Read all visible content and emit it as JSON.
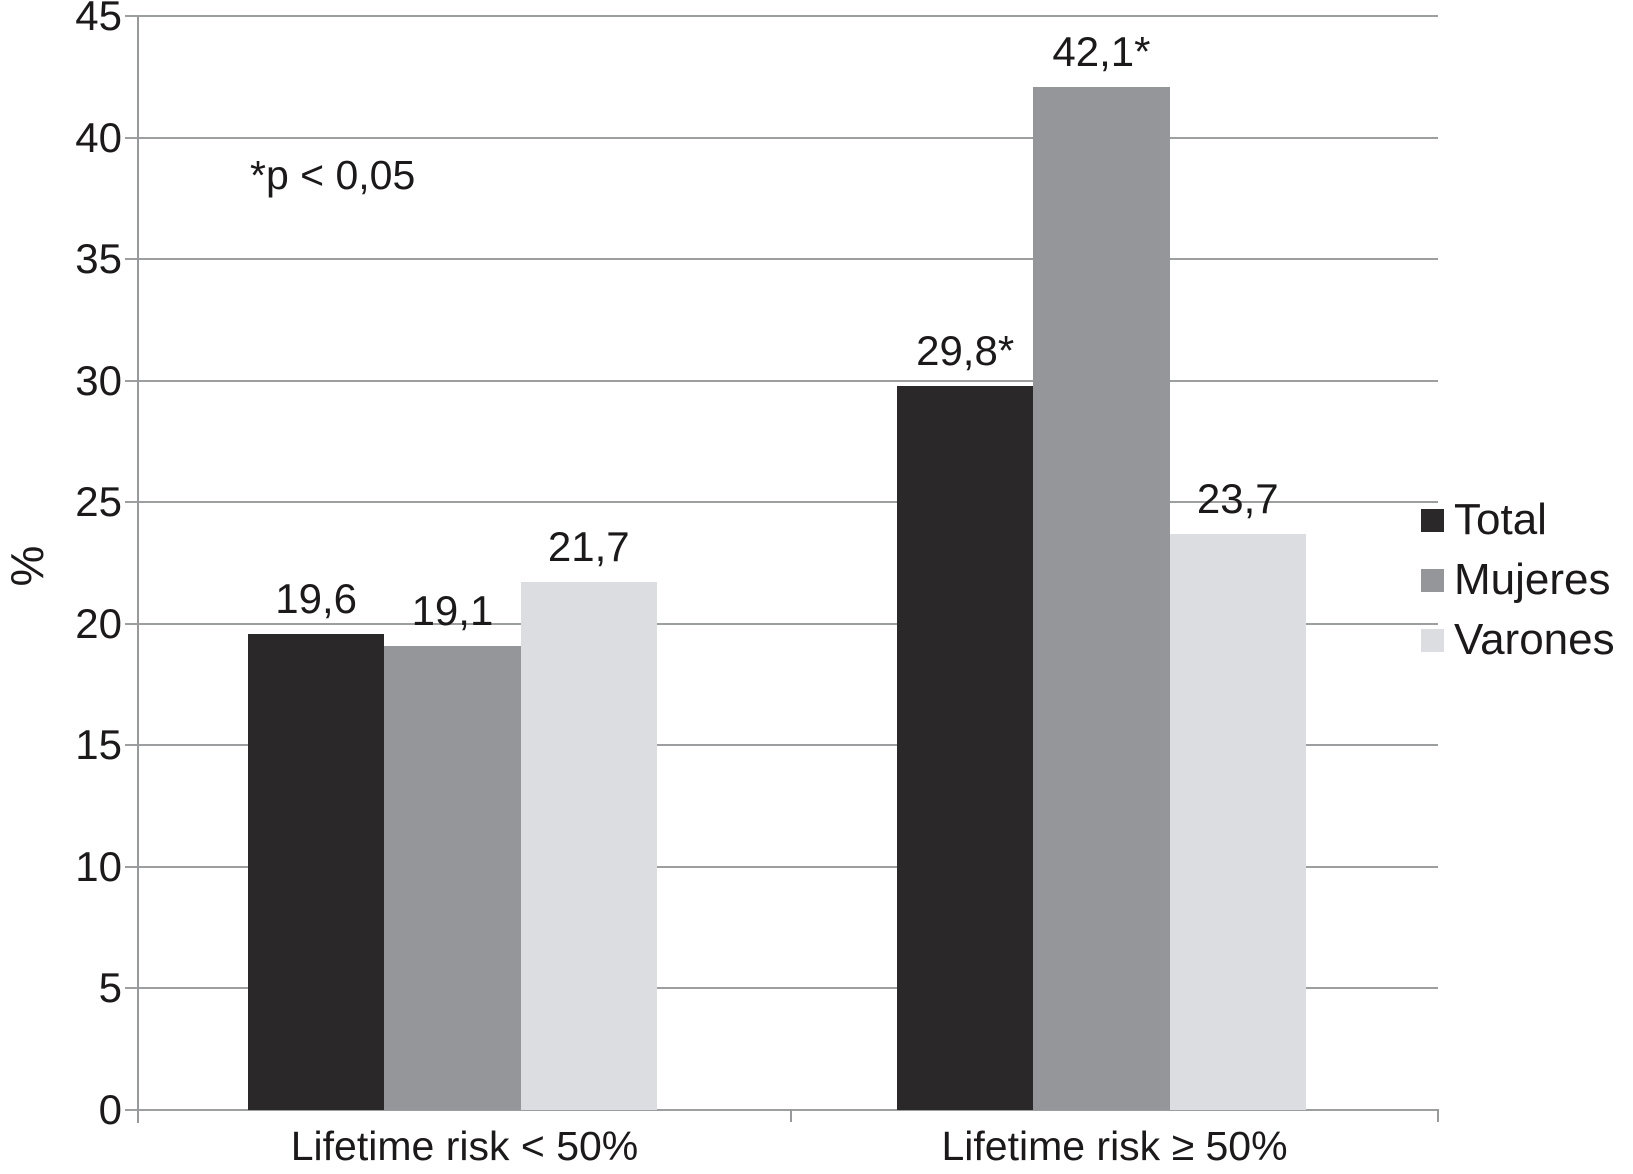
{
  "chart_data": {
    "type": "bar",
    "title": "",
    "ylabel": "%",
    "xlabel": "",
    "annotation": "*p < 0,05",
    "categories": [
      "Lifetime risk < 50%",
      "Lifetime risk ≥ 50%"
    ],
    "series": [
      {
        "name": "Total",
        "color": "#2b2829",
        "values": [
          19.6,
          29.8
        ],
        "value_labels": [
          "19,6",
          "29,8*"
        ]
      },
      {
        "name": "Mujeres",
        "color": "#95969a",
        "values": [
          19.1,
          42.1
        ],
        "value_labels": [
          "19,1",
          "42,1*"
        ]
      },
      {
        "name": "Varones",
        "color": "#dcdde0",
        "values": [
          21.7,
          23.7
        ],
        "value_labels": [
          "21,7",
          "23,7"
        ]
      }
    ],
    "ylim": [
      0,
      45
    ],
    "yticks": [
      0,
      5,
      10,
      15,
      20,
      25,
      30,
      35,
      40,
      45
    ],
    "grid": true,
    "legend_position": "right"
  },
  "colors": {
    "background": "#ffffff",
    "gridline": "#9d9ea0",
    "axis": "#98999b",
    "text": "#1c191a"
  }
}
